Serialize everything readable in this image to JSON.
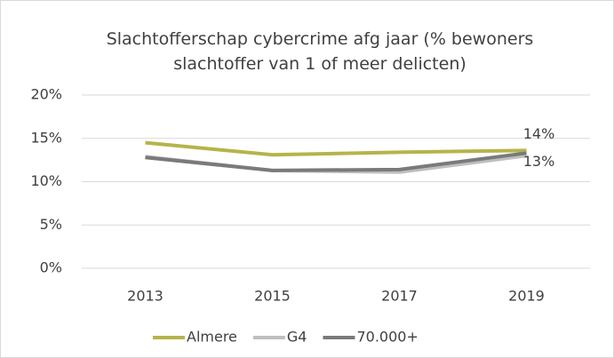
{
  "chart_data": {
    "type": "line",
    "title": "Slachtofferschap cybercrime afg jaar (% bewoners slachtoffer van 1 of meer delicten)",
    "categories": [
      "2013",
      "2015",
      "2017",
      "2019"
    ],
    "series": [
      {
        "name": "Almere",
        "color": "#b5b44a",
        "values": [
          14.5,
          13.1,
          13.4,
          13.6
        ],
        "value_labels": [
          null,
          null,
          null,
          "14%"
        ]
      },
      {
        "name": "G4",
        "color": "#bfbfbf",
        "values": [
          12.9,
          11.3,
          11.1,
          13.0
        ]
      },
      {
        "name": "70.000+",
        "color": "#7a7a7a",
        "values": [
          12.8,
          11.3,
          11.4,
          13.3
        ],
        "value_labels": [
          null,
          null,
          null,
          "13%"
        ]
      }
    ],
    "ylim": [
      0,
      20
    ],
    "yticks": [
      {
        "value": 0,
        "label": "0%"
      },
      {
        "value": 5,
        "label": "5%"
      },
      {
        "value": 10,
        "label": "10%"
      },
      {
        "value": 15,
        "label": "15%"
      },
      {
        "value": 20,
        "label": "20%"
      }
    ],
    "grid": true,
    "legend": "bottom"
  }
}
